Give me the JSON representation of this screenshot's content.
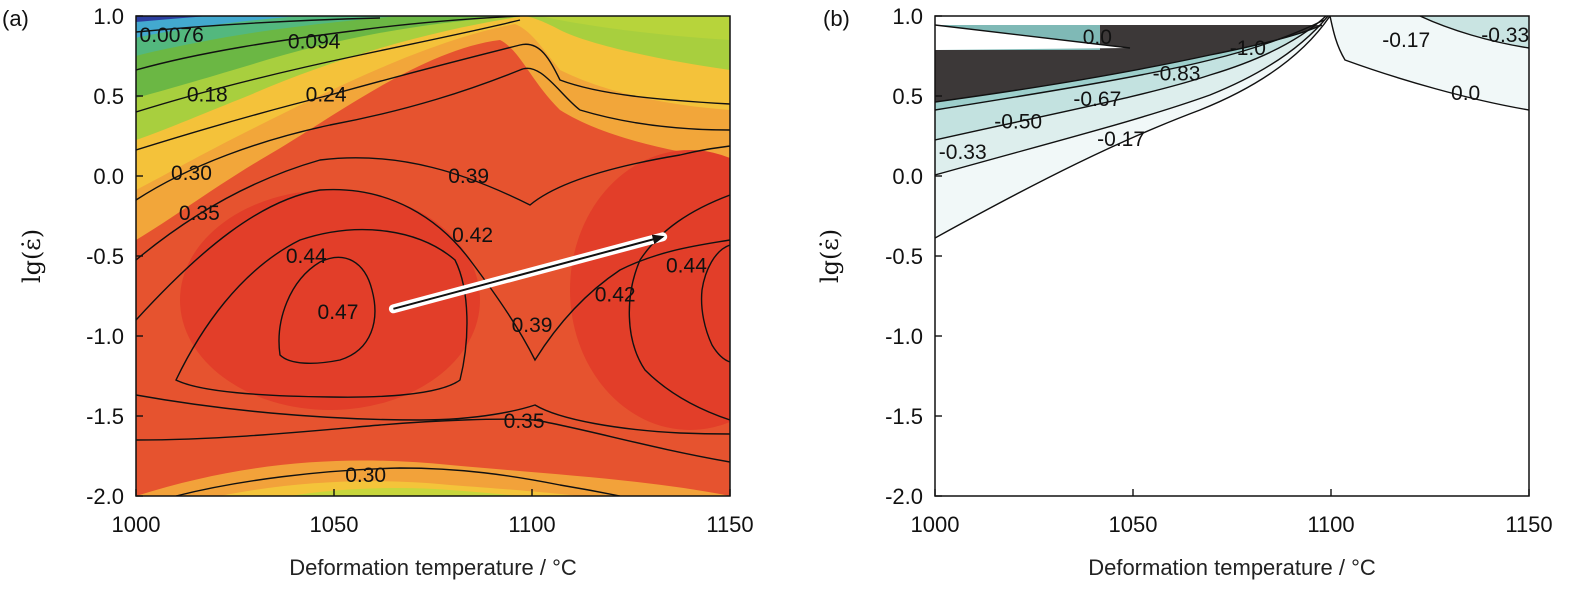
{
  "chart_data": [
    {
      "type": "heatmap",
      "panel_label": "(a)",
      "xlabel": "Deformation temperature / °C",
      "ylabel": "lg(ε̇)",
      "xlim": [
        1000,
        1150
      ],
      "ylim": [
        -2.0,
        1.0
      ],
      "xticks": [
        "1000",
        "1050",
        "1100",
        "1150"
      ],
      "yticks": [
        "1.0",
        "0.5",
        "0.0",
        "-0.5",
        "-1.0",
        "-1.5",
        "-2.0"
      ],
      "colormap": [
        "#2b3a9c",
        "#3fb0d8",
        "#7cc84a",
        "#e8d03a",
        "#f0a23a",
        "#e84a2a",
        "#e33a28"
      ],
      "contour_labels": [
        {
          "text": "0.0076",
          "x": 1009,
          "y": 0.88
        },
        {
          "text": "0.094",
          "x": 1045,
          "y": 0.84
        },
        {
          "text": "0.18",
          "x": 1018,
          "y": 0.51
        },
        {
          "text": "0.24",
          "x": 1048,
          "y": 0.51
        },
        {
          "text": "0.30",
          "x": 1014,
          "y": 0.02
        },
        {
          "text": "0.35",
          "x": 1016,
          "y": -0.23
        },
        {
          "text": "0.39",
          "x": 1084,
          "y": 0.0
        },
        {
          "text": "0.42",
          "x": 1085,
          "y": -0.37
        },
        {
          "text": "0.44",
          "x": 1043,
          "y": -0.5
        },
        {
          "text": "0.47",
          "x": 1051,
          "y": -0.85
        },
        {
          "text": "0.39",
          "x": 1100,
          "y": -0.93
        },
        {
          "text": "0.42",
          "x": 1121,
          "y": -0.74
        },
        {
          "text": "0.44",
          "x": 1139,
          "y": -0.56
        },
        {
          "text": "0.35",
          "x": 1098,
          "y": -1.53
        },
        {
          "text": "0.30",
          "x": 1058,
          "y": -1.87
        }
      ],
      "arrow": {
        "from": [
          1065,
          -0.83
        ],
        "to": [
          1133,
          -0.38
        ]
      }
    },
    {
      "type": "heatmap",
      "panel_label": "(b)",
      "xlabel": "Deformation temperature / °C",
      "ylabel": "lg(ε̇)",
      "xlim": [
        1000,
        1150
      ],
      "ylim": [
        -2.0,
        1.0
      ],
      "xticks": [
        "1000",
        "1050",
        "1100",
        "1150"
      ],
      "yticks": [
        "1.0",
        "0.5",
        "0.0",
        "-0.5",
        "-1.0",
        "-1.5",
        "-2.0"
      ],
      "colormap": [
        "#3d3a3a",
        "#7fb7b4",
        "#b9dcda",
        "#ddeeed",
        "#f4f9f9",
        "#ffffff"
      ],
      "contour_labels": [
        {
          "text": "0.0",
          "x": 1041,
          "y": 0.87
        },
        {
          "text": "-1.0",
          "x": 1079,
          "y": 0.8
        },
        {
          "text": "-0.83",
          "x": 1061,
          "y": 0.64
        },
        {
          "text": "-0.67",
          "x": 1041,
          "y": 0.48
        },
        {
          "text": "-0.50",
          "x": 1021,
          "y": 0.34
        },
        {
          "text": "-0.17",
          "x": 1047,
          "y": 0.23
        },
        {
          "text": "-0.33",
          "x": 1007,
          "y": 0.15
        },
        {
          "text": "-0.17",
          "x": 1119,
          "y": 0.85
        },
        {
          "text": "-0.33",
          "x": 1144,
          "y": 0.88
        },
        {
          "text": "0.0",
          "x": 1134,
          "y": 0.52
        }
      ]
    }
  ]
}
